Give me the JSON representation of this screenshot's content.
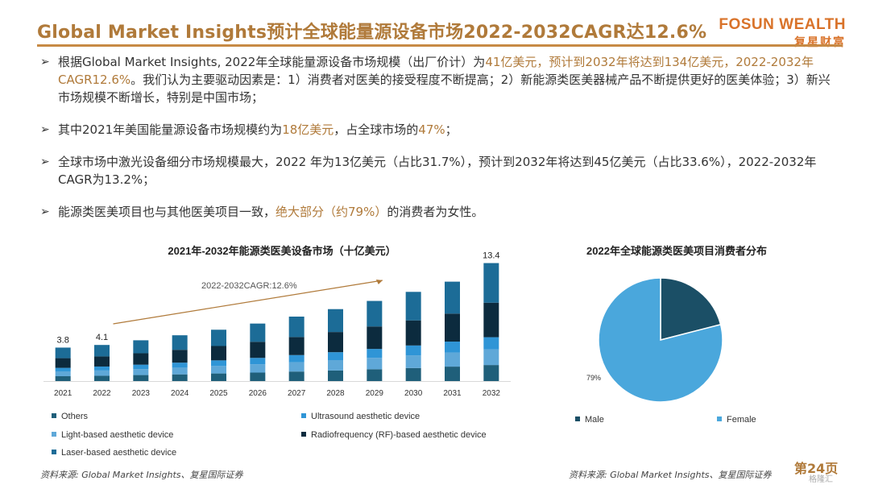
{
  "header": {
    "title": "Global Market Insights预计全球能量源设备市场2022-2032CAGR达12.6%",
    "brand_en": "FOSUN WEALTH",
    "brand_cn": "复星财富"
  },
  "bullets": [
    {
      "segments": [
        {
          "t": "根据Global Market Insights, 2022年全球能量源设备市场规模（出厂价计）为",
          "hl": false
        },
        {
          "t": "41亿美元，预计到2032年将达到134亿美元，2022-2032年CAGR12.6%",
          "hl": true
        },
        {
          "t": "。我们认为主要驱动因素是：1）消费者对医美的接受程度不断提高；2）新能源类医美器械产品不断提供更好的医美体验；3）新兴市场规模不断增长，特别是中国市场；",
          "hl": false
        }
      ]
    },
    {
      "segments": [
        {
          "t": "其中2021年美国能量源设备市场规模约为",
          "hl": false
        },
        {
          "t": "18亿美元",
          "hl": true
        },
        {
          "t": "，占全球市场的",
          "hl": false
        },
        {
          "t": "47%",
          "hl": true
        },
        {
          "t": "；",
          "hl": false
        }
      ]
    },
    {
      "segments": [
        {
          "t": "全球市场中激光设备细分市场规模最大，2022 年为13亿美元（占比31.7%），预计到2032年将达到45亿美元（占比33.6%），2022-2032年CAGR为13.2%；",
          "hl": false
        }
      ]
    },
    {
      "segments": [
        {
          "t": "能源类医美项目也与其他医美项目一致，",
          "hl": false
        },
        {
          "t": "绝大部分（约79%）",
          "hl": true
        },
        {
          "t": "的消费者为女性。",
          "hl": false
        }
      ]
    }
  ],
  "chart_data": [
    {
      "type": "bar",
      "stacked": true,
      "title": "2021年-2032年能源类医美设备市场（十亿美元）",
      "categories": [
        "2021",
        "2022",
        "2023",
        "2024",
        "2025",
        "2026",
        "2027",
        "2028",
        "2029",
        "2030",
        "2031",
        "2032"
      ],
      "series": [
        {
          "name": "Others",
          "color": "#1f5f7a",
          "values": [
            0.55,
            0.6,
            0.68,
            0.76,
            0.86,
            0.96,
            1.08,
            1.2,
            1.34,
            1.48,
            1.64,
            1.82
          ]
        },
        {
          "name": "Light-based aesthetic device",
          "color": "#5fa8d8",
          "values": [
            0.55,
            0.6,
            0.68,
            0.76,
            0.85,
            0.95,
            1.06,
            1.18,
            1.3,
            1.44,
            1.6,
            1.77
          ]
        },
        {
          "name": "Ultrasound aesthetic device",
          "color": "#2f95d6",
          "values": [
            0.4,
            0.45,
            0.5,
            0.57,
            0.64,
            0.72,
            0.81,
            0.9,
            1.01,
            1.12,
            1.24,
            1.39
          ]
        },
        {
          "name": "Radiofrequency (RF)-based aesthetic device",
          "color": "#0c2b3e",
          "values": [
            1.1,
            1.15,
            1.3,
            1.46,
            1.63,
            1.83,
            2.05,
            2.29,
            2.55,
            2.85,
            3.18,
            3.92
          ]
        },
        {
          "name": "Laser-based aesthetic device",
          "color": "#1c6c97",
          "values": [
            1.2,
            1.3,
            1.47,
            1.65,
            1.85,
            2.07,
            2.32,
            2.6,
            2.9,
            3.24,
            3.63,
            4.5
          ]
        }
      ],
      "totals_labels": {
        "2021": "3.8",
        "2022": "4.1",
        "2032": "13.4"
      },
      "annotation": "2022-2032CAGR:12.6%",
      "ylim": [
        0,
        14
      ]
    },
    {
      "type": "pie",
      "title": "2022年全球能源类医美项目消费者分布",
      "slices": [
        {
          "name": "Male",
          "value": 21,
          "color": "#1b4f66"
        },
        {
          "name": "Female",
          "value": 79,
          "color": "#4aa7dc"
        }
      ],
      "labels": {
        "Female": "79%"
      }
    }
  ],
  "footer": {
    "source_left": "资料来源: Global Market Insights、复星国际证券",
    "source_right": "资料来源: Global Market Insights、复星国际证券",
    "page": "第24页",
    "watermark": "格隆汇"
  }
}
